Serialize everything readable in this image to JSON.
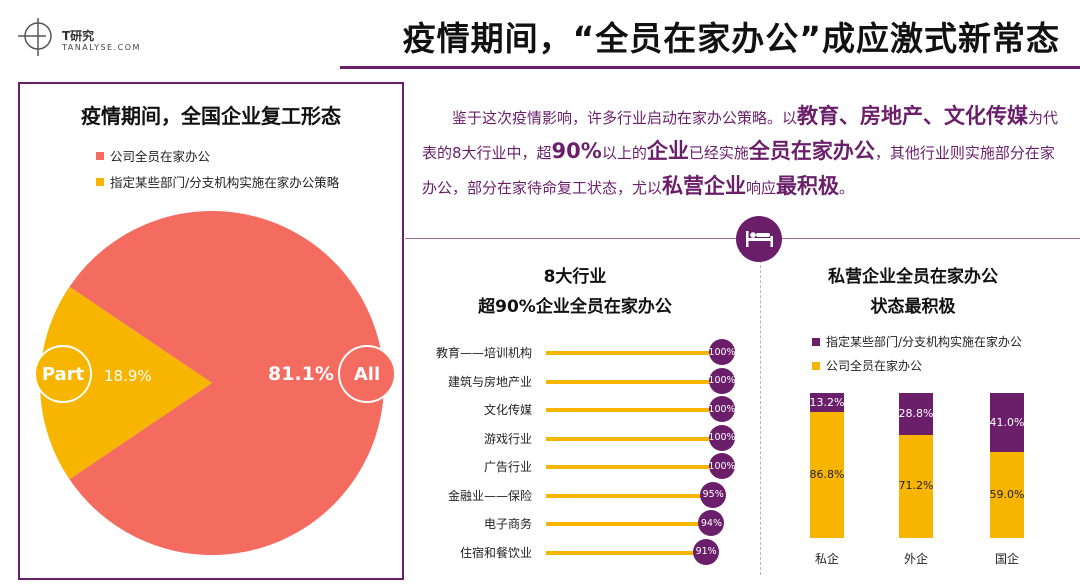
{
  "header": {
    "logo_name": "T研究",
    "logo_sub": "TANALYSE.COM",
    "title": "疫情期间，“全员在家办公”成应激式新常态"
  },
  "colors": {
    "purple": "#6b1f6b",
    "coral": "#f46b5f",
    "yellow": "#f7b500"
  },
  "intro": {
    "p1": "鉴于这次疫情影响，许多行业启动在家办公策略。以",
    "b1": "教育、房地产、文化传媒",
    "p2": "为代表的8大行业中，超",
    "b2": "90%",
    "p3": "以上的",
    "b3": "企业",
    "p4": "已经实施",
    "b4": "全员在家办公",
    "p5": "，其他行业则实施部分在家办公，部分在家待命复工状态，尤以",
    "b5": "私营企业",
    "p6": "响应",
    "b6": "最积极",
    "p7": "。"
  },
  "icons": {
    "logo": "t-research-logo-icon",
    "bed": "bed-icon"
  },
  "chart_data": [
    {
      "type": "pie",
      "title": "疫情期间，全国企业复工形态",
      "legend": [
        "公司全员在家办公",
        "指定某些部门/分支机构实施在家办公策略"
      ],
      "legend_placement": "top-left",
      "slices": [
        {
          "label": "公司全员在家办公",
          "value": 81.1,
          "display": "81.1%",
          "badge": "All",
          "color": "#f46b5f"
        },
        {
          "label": "指定某些部门/分支机构实施在家办公策略",
          "value": 18.9,
          "display": "18.9%",
          "badge": "Part",
          "color": "#f7b500"
        }
      ]
    },
    {
      "type": "bar",
      "orientation": "horizontal",
      "title_line1": "8大行业",
      "title_line2": "超90%企业全员在家办公",
      "categories": [
        "教育——培训机构",
        "建筑与房地产业",
        "文化传媒",
        "游戏行业",
        "广告行业",
        "金融业——保险",
        "电子商务",
        "住宿和餐饮业"
      ],
      "values": [
        100,
        100,
        100,
        100,
        100,
        95,
        94,
        91
      ],
      "labels": [
        "100%",
        "100%",
        "100%",
        "100%",
        "100%",
        "95%",
        "94%",
        "91%"
      ],
      "xlim": [
        0,
        100
      ]
    },
    {
      "type": "bar",
      "stacked": true,
      "title_line1": "私营企业全员在家办公",
      "title_line2": "状态最积极",
      "categories": [
        "私企",
        "外企",
        "国企"
      ],
      "series": [
        {
          "name": "指定某些部门/分支机构实施在家办公",
          "values": [
            13.2,
            28.8,
            41.0
          ],
          "labels": [
            "13.2%",
            "28.8%",
            "41.0%"
          ],
          "color": "#6b1f6b"
        },
        {
          "name": "公司全员在家办公",
          "values": [
            86.8,
            71.2,
            59.0
          ],
          "labels": [
            "86.8%",
            "71.2%",
            "59.0%"
          ],
          "color": "#f7b500"
        }
      ],
      "ylim": [
        0,
        100
      ],
      "legend_placement": "top"
    }
  ]
}
